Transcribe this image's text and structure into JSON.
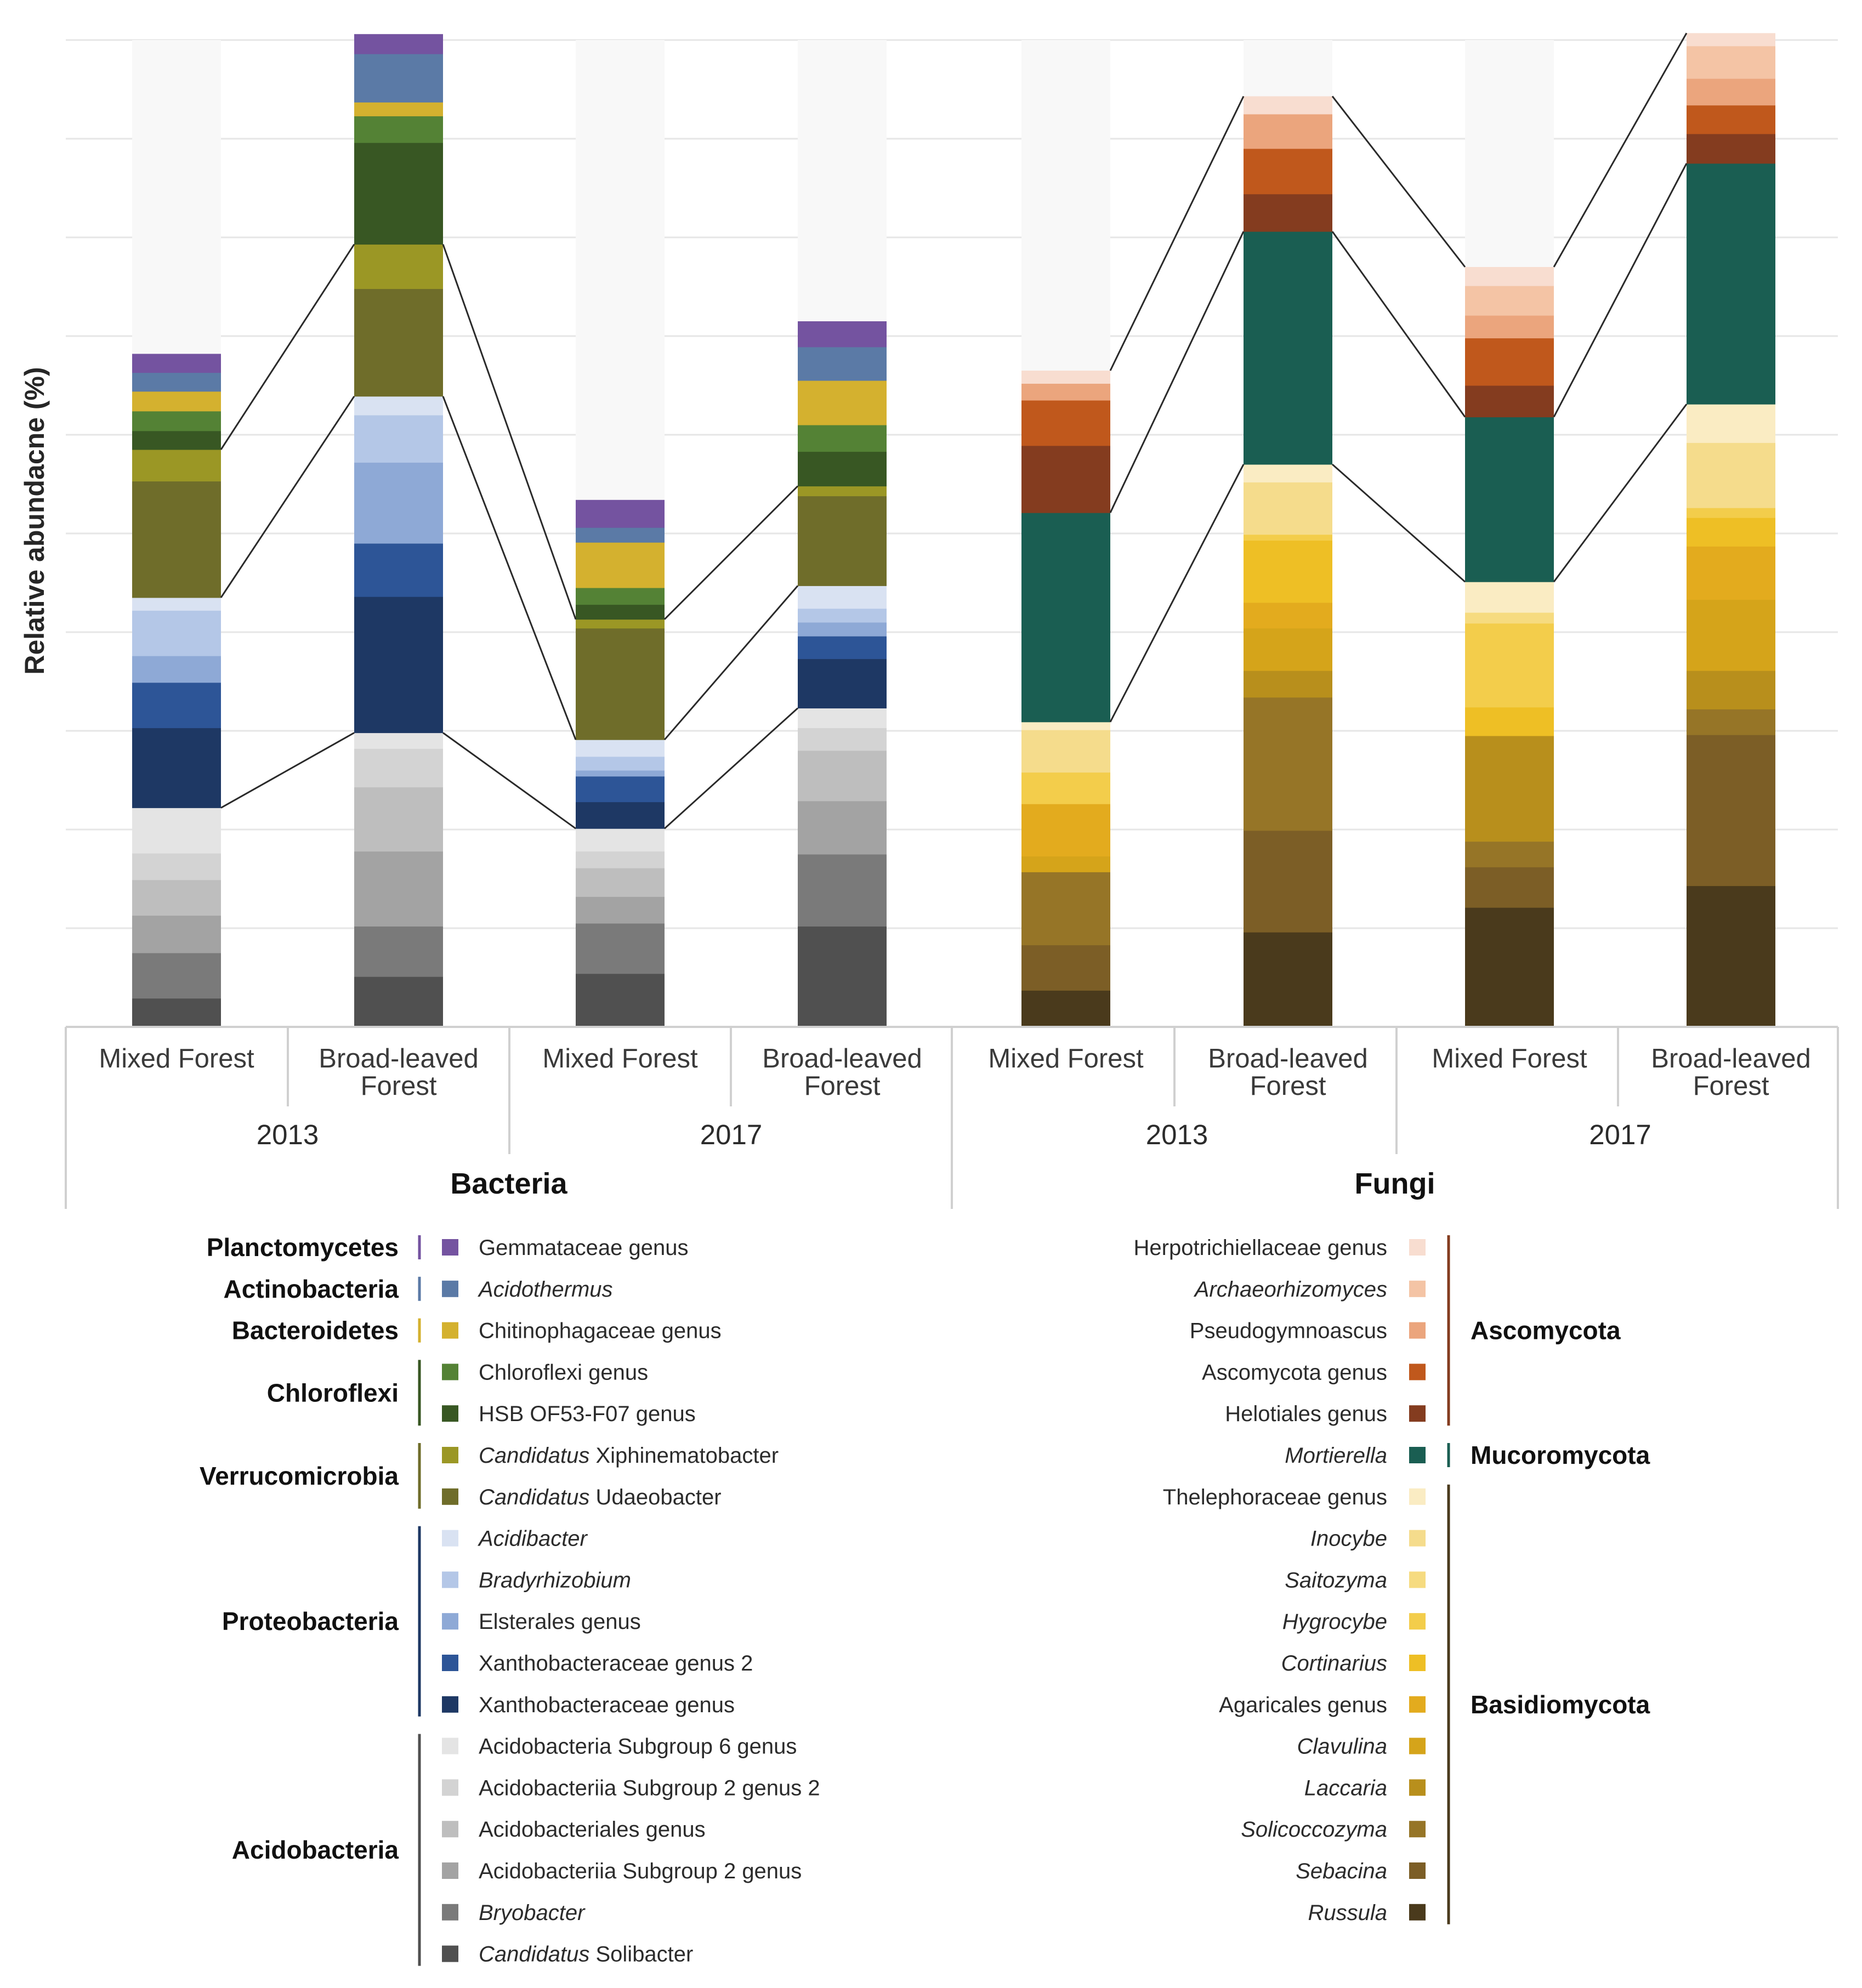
{
  "chart_data": {
    "type": "bar",
    "stacked": true,
    "title": "",
    "ylabel": "Relative abundacne (%)",
    "xlabel": "",
    "ylim": [
      0,
      100
    ],
    "grid": true,
    "panels": [
      {
        "domain": "Bacteria",
        "groups": [
          {
            "year": "2013",
            "bars": [
              {
                "label": "Mixed Forest",
                "sample": "B-2013-M"
              },
              {
                "label": "Broad-leaved Forest",
                "sample": "B-2013-B"
              }
            ]
          },
          {
            "year": "2017",
            "bars": [
              {
                "label": "Mixed Forest",
                "sample": "B-2017-M"
              },
              {
                "label": "Broad-leaved Forest",
                "sample": "B-2017-B"
              }
            ]
          }
        ]
      },
      {
        "domain": "Fungi",
        "groups": [
          {
            "year": "2013",
            "bars": [
              {
                "label": "Mixed Forest",
                "sample": "F-2013-M"
              },
              {
                "label": "Broad-leaved Forest",
                "sample": "F-2013-B"
              }
            ]
          },
          {
            "year": "2017",
            "bars": [
              {
                "label": "Mixed Forest",
                "sample": "F-2017-M"
              },
              {
                "label": "Broad-leaved Forest",
                "sample": "F-2017-B"
              }
            ]
          }
        ]
      }
    ],
    "bacteria": {
      "series": [
        {
          "name": "Candidatus Solibacter",
          "italic_prefix": "Candidatus",
          "rest": " Solibacter",
          "phylum": "Acidobacteria",
          "color": "#505050",
          "values": [
            2.9,
            5.1,
            5.4,
            10.2
          ]
        },
        {
          "name": "Bryobacter",
          "italic": true,
          "phylum": "Acidobacteria",
          "color": "#7a7a7a",
          "values": [
            4.6,
            5.1,
            5.1,
            7.3
          ]
        },
        {
          "name": "Acidobacteriia Subgroup 2 genus",
          "phylum": "Acidobacteria",
          "color": "#a3a3a3",
          "values": [
            3.8,
            7.6,
            2.7,
            5.4
          ]
        },
        {
          "name": "Acidobacteriales genus",
          "phylum": "Acidobacteria",
          "color": "#bebebe",
          "values": [
            3.6,
            6.5,
            2.9,
            5.1
          ]
        },
        {
          "name": "Acidobacteriia Subgroup 2 genus 2",
          "phylum": "Acidobacteria",
          "color": "#d3d3d3",
          "values": [
            2.7,
            3.9,
            1.7,
            2.3
          ]
        },
        {
          "name": "Acidobacteria Subgroup 6 genus",
          "phylum": "Acidobacteria",
          "color": "#e4e4e4",
          "values": [
            4.6,
            1.6,
            2.3,
            2.0
          ]
        },
        {
          "name": "Xanthobacteraceae genus",
          "phylum": "Proteobacteria",
          "color": "#1e3864",
          "values": [
            8.1,
            13.8,
            2.7,
            5.0
          ]
        },
        {
          "name": "Xanthobacteraceae genus 2",
          "phylum": "Proteobacteria",
          "color": "#2d5597",
          "values": [
            4.6,
            5.4,
            2.6,
            2.3
          ]
        },
        {
          "name": "Elsterales genus",
          "phylum": "Proteobacteria",
          "color": "#8ea9d6",
          "values": [
            2.7,
            8.2,
            0.6,
            1.4
          ]
        },
        {
          "name": "Bradyrhizobium",
          "italic": true,
          "phylum": "Proteobacteria",
          "color": "#b4c7e7",
          "values": [
            4.6,
            4.8,
            1.4,
            1.4
          ]
        },
        {
          "name": "Acidibacter",
          "italic": true,
          "phylum": "Proteobacteria",
          "color": "#d9e2f2",
          "values": [
            1.3,
            1.9,
            1.7,
            2.3
          ]
        },
        {
          "name": "Candidatus Udaeobacter",
          "italic_prefix": "Candidatus",
          "rest": " Udaeobacter",
          "phylum": "Verrucomicrobia",
          "color": "#6f6d2a",
          "values": [
            11.8,
            10.9,
            11.3,
            9.1
          ]
        },
        {
          "name": "Candidatus Xiphinematobacter",
          "italic_prefix": "Candidatus",
          "rest": " Xiphinematobacter",
          "phylum": "Verrucomicrobia",
          "color": "#9b9725",
          "values": [
            3.2,
            4.5,
            0.9,
            1.0
          ]
        },
        {
          "name": "HSB OF53-F07 genus",
          "phylum": "Chloroflexi",
          "color": "#385723",
          "values": [
            1.9,
            10.3,
            1.5,
            3.5
          ]
        },
        {
          "name": "Chloroflexi genus",
          "phylum": "Chloroflexi",
          "color": "#548235",
          "values": [
            2.0,
            2.7,
            1.7,
            2.7
          ]
        },
        {
          "name": "Chitinophagaceae genus",
          "phylum": "Bacteroidetes",
          "color": "#d4b12f",
          "values": [
            2.0,
            1.4,
            4.6,
            4.5
          ]
        },
        {
          "name": "Acidothermus",
          "italic": true,
          "phylum": "Actinobacteria",
          "color": "#5b7aa6",
          "values": [
            1.9,
            4.9,
            1.5,
            3.4
          ]
        },
        {
          "name": "Gemmataceae genus",
          "phylum": "Planctomycetes",
          "color": "#7453a0",
          "values": [
            1.9,
            2.0,
            2.8,
            2.6
          ]
        }
      ],
      "remainder_color": "#f8f8f8"
    },
    "fungi": {
      "series": [
        {
          "name": "Russula",
          "italic": true,
          "phylum": "Basidiomycota",
          "color": "#4a3a1c",
          "values": [
            3.7,
            9.6,
            12.1,
            14.3
          ]
        },
        {
          "name": "Sebacina",
          "italic": true,
          "phylum": "Basidiomycota",
          "color": "#7c5e26",
          "values": [
            4.6,
            10.3,
            4.1,
            15.3
          ]
        },
        {
          "name": "Solicoccozyma",
          "italic": true,
          "phylum": "Basidiomycota",
          "color": "#967527",
          "values": [
            7.4,
            13.5,
            2.6,
            2.6
          ]
        },
        {
          "name": "Laccaria",
          "italic": true,
          "phylum": "Basidiomycota",
          "color": "#b88f1c",
          "values": [
            0,
            2.7,
            10.7,
            3.9
          ]
        },
        {
          "name": "Clavulina",
          "italic": true,
          "phylum": "Basidiomycota",
          "color": "#d5a41a",
          "values": [
            1.6,
            4.3,
            0,
            7.2
          ]
        },
        {
          "name": "Agaricales genus",
          "phylum": "Basidiomycota",
          "color": "#e3ab1e",
          "values": [
            5.3,
            2.6,
            0,
            5.4
          ]
        },
        {
          "name": "Cortinarius",
          "italic": true,
          "phylum": "Basidiomycota",
          "color": "#eebf25",
          "values": [
            0,
            6.3,
            2.9,
            2.9
          ]
        },
        {
          "name": "Hygrocybe",
          "italic": true,
          "phylum": "Basidiomycota",
          "color": "#f3cd4b",
          "values": [
            3.2,
            0.6,
            8.5,
            1.0
          ]
        },
        {
          "name": "Saitozyma",
          "italic": true,
          "phylum": "Basidiomycota",
          "color": "#f6db80",
          "values": [
            0,
            0,
            1.1,
            0
          ]
        },
        {
          "name": "Inocybe",
          "italic": true,
          "phylum": "Basidiomycota",
          "color": "#f5dc8c",
          "values": [
            4.3,
            5.3,
            0,
            6.6
          ]
        },
        {
          "name": "Thelephoraceae genus",
          "phylum": "Basidiomycota",
          "color": "#faecc3",
          "values": [
            0.8,
            1.8,
            3.1,
            3.9
          ]
        },
        {
          "name": "Mortierella",
          "italic": true,
          "phylum": "Mucoromycota",
          "color": "#1a5e52",
          "values": [
            21.2,
            23.6,
            16.7,
            24.4
          ]
        },
        {
          "name": "Helotiales genus",
          "phylum": "Ascomycota",
          "color": "#843c1f",
          "values": [
            6.8,
            3.8,
            3.2,
            3.0
          ]
        },
        {
          "name": "Ascomycota genus",
          "phylum": "Ascomycota",
          "color": "#c0581c",
          "values": [
            4.6,
            4.6,
            4.8,
            2.9
          ]
        },
        {
          "name": "Pseudogymnoascus",
          "phylum": "Ascomycota",
          "color": "#eba57d",
          "values": [
            1.7,
            3.5,
            2.3,
            2.7
          ]
        },
        {
          "name": "Archaeorhizomyces",
          "italic": true,
          "phylum": "Ascomycota",
          "color": "#f4c4a5",
          "values": [
            0,
            0,
            3.0,
            3.3
          ]
        },
        {
          "name": "Herpotrichiellaceae genus",
          "phylum": "Ascomycota",
          "color": "#f8ddd0",
          "values": [
            1.3,
            1.8,
            1.9,
            1.3
          ]
        }
      ],
      "remainder_color": "#f8f8f8"
    },
    "connectors": {
      "bacteria": [
        {
          "from": "B-2013-M",
          "to": "B-2013-B",
          "levels": [
            22.0,
            29.2,
            29.2,
            29.3
          ]
        },
        {
          "from": "B-2013-B",
          "to": "B-2017-M",
          "levels": [
            29.2,
            19.8,
            29.2,
            29.3
          ]
        }
      ]
    },
    "legend": {
      "bacteria": {
        "phyla": [
          {
            "name": "Planctomycetes",
            "color": "#7453a0",
            "count": 1
          },
          {
            "name": "Actinobacteria",
            "color": "#5b7aa6",
            "count": 1
          },
          {
            "name": "Bacteroidetes",
            "color": "#d4b12f",
            "count": 1
          },
          {
            "name": "Chloroflexi",
            "color": "#385723",
            "count": 2
          },
          {
            "name": "Verrucomicrobia",
            "color": "#6f6d2a",
            "count": 2
          },
          {
            "name": "Proteobacteria",
            "color": "#1e3864",
            "count": 5
          },
          {
            "name": "Acidobacteria",
            "color": "#505050",
            "count": 6
          }
        ],
        "order": [
          "Gemmataceae genus",
          "Acidothermus",
          "Chitinophagaceae genus",
          "Chloroflexi genus",
          "HSB OF53-F07 genus",
          "Candidatus Xiphinematobacter",
          "Candidatus Udaeobacter",
          "Acidibacter",
          "Bradyrhizobium",
          "Elsterales genus",
          "Xanthobacteraceae genus 2",
          "Xanthobacteraceae genus",
          "Acidobacteria Subgroup 6 genus",
          "Acidobacteriia Subgroup 2 genus 2",
          "Acidobacteriales genus",
          "Acidobacteriia Subgroup 2 genus",
          "Bryobacter",
          "Candidatus Solibacter"
        ]
      },
      "fungi": {
        "phyla": [
          {
            "name": "Ascomycota",
            "color": "#843c1f",
            "count": 5
          },
          {
            "name": "Mucoromycota",
            "color": "#1a5e52",
            "count": 1
          },
          {
            "name": "Basidiomycota",
            "color": "#4a3a1c",
            "count": 11
          }
        ],
        "order": [
          "Herpotrichiellaceae genus",
          "Archaeorhizomyces",
          "Pseudogymnoascus",
          "Ascomycota genus",
          "Helotiales genus",
          "Mortierella",
          "Thelephoraceae genus",
          "Inocybe",
          "Saitozyma",
          "Hygrocybe",
          "Cortinarius",
          "Agaricales genus",
          "Clavulina",
          "Laccaria",
          "Solicoccozyma",
          "Sebacina",
          "Russula"
        ]
      }
    }
  }
}
